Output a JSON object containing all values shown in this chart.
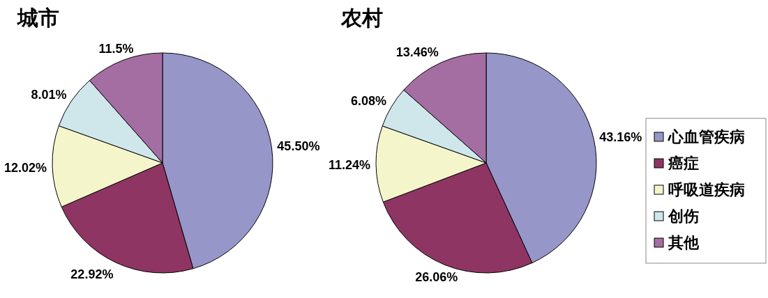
{
  "chart_data": [
    {
      "type": "pie",
      "title": "城市",
      "categories": [
        null,
        null,
        null,
        null,
        null
      ],
      "values": [
        45.5,
        22.92,
        12.02,
        8.01,
        11.5
      ],
      "value_labels": [
        "45.50%",
        "22.92%",
        "12.02%",
        "8.01%",
        "11.5%"
      ],
      "colors": [
        "#9696c8",
        "#8e3563",
        "#f5f5cc",
        "#cfe6eb",
        "#a46ea3"
      ]
    },
    {
      "type": "pie",
      "title": "农村",
      "categories": [
        "心血管疾病",
        "癌症",
        "呼吸道疾病",
        "创伤",
        "其他"
      ],
      "values": [
        43.16,
        26.06,
        11.24,
        6.08,
        13.46
      ],
      "value_labels": [
        "43.16%",
        "26.06%",
        "11.24%",
        "6.08%",
        "13.46%"
      ],
      "colors": [
        "#9696c8",
        "#8e3563",
        "#f5f5cc",
        "#cfe6eb",
        "#a46ea3"
      ],
      "legend": "right"
    }
  ]
}
